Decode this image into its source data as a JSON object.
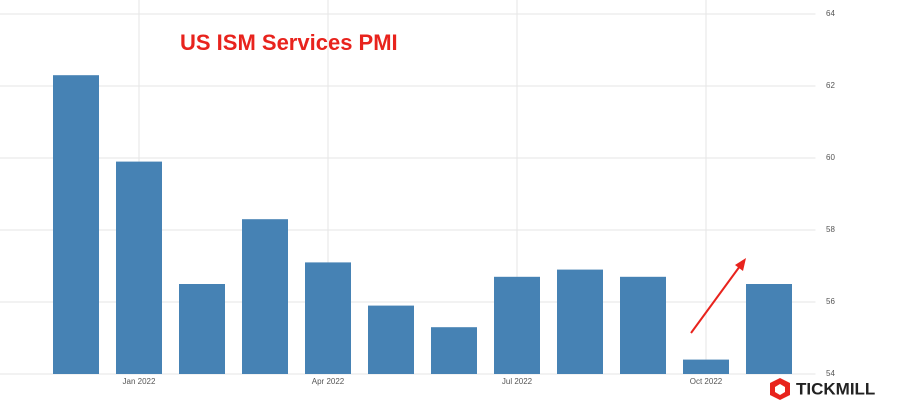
{
  "chart_data": {
    "type": "bar",
    "title": "US ISM Services PMI",
    "categories": [
      null,
      "Jan 2022",
      null,
      null,
      "Apr 2022",
      null,
      null,
      "Jul 2022",
      null,
      null,
      "Oct 2022",
      null
    ],
    "values": [
      62.3,
      59.9,
      56.5,
      58.3,
      57.1,
      55.9,
      55.3,
      56.7,
      56.9,
      56.7,
      54.4,
      56.5
    ],
    "color": "#4682b4",
    "ylim": [
      54,
      64
    ],
    "yticks": [
      54,
      56,
      58,
      60,
      62,
      64
    ],
    "grid": true
  },
  "watermark": "TICKMILL"
}
